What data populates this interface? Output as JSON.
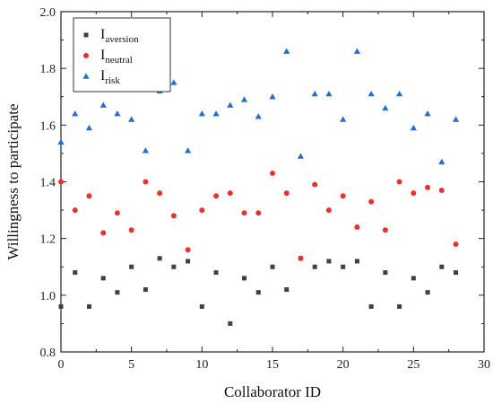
{
  "chart_data": {
    "type": "scatter",
    "xlabel": "Collaborator ID",
    "ylabel": "Willingness to participate",
    "xlim": [
      0,
      30
    ],
    "ylim": [
      0.8,
      2.0
    ],
    "xticks": [
      0,
      5,
      10,
      15,
      20,
      25,
      30
    ],
    "yticks": [
      0.8,
      1.0,
      1.2,
      1.4,
      1.6,
      1.8,
      2.0
    ],
    "xtick_labels": [
      "0",
      "5",
      "10",
      "15",
      "20",
      "25",
      "30"
    ],
    "ytick_labels": [
      "0.8",
      "1.0",
      "1.2",
      "1.4",
      "1.6",
      "1.8",
      "2.0"
    ],
    "grid": false,
    "legend_position": "top-left",
    "series": [
      {
        "name": "I_aversion",
        "label_main": "I",
        "label_sub": "aversion",
        "marker": "square",
        "color": "#404040",
        "x": [
          0,
          1,
          2,
          3,
          4,
          5,
          6,
          7,
          8,
          9,
          10,
          11,
          12,
          13,
          14,
          15,
          16,
          17,
          18,
          19,
          20,
          21,
          22,
          23,
          24,
          25,
          26,
          27,
          28
        ],
        "y": [
          0.96,
          1.08,
          0.96,
          1.06,
          1.01,
          1.1,
          1.02,
          1.13,
          1.1,
          1.12,
          0.96,
          1.08,
          0.9,
          1.06,
          1.01,
          1.1,
          1.02,
          1.13,
          1.1,
          1.12,
          1.1,
          1.12,
          0.96,
          1.08,
          0.96,
          1.06,
          1.01,
          1.1,
          1.08
        ]
      },
      {
        "name": "I_neutral",
        "label_main": "I",
        "label_sub": "neutral",
        "marker": "circle",
        "color": "#e8322e",
        "x": [
          0,
          1,
          2,
          3,
          4,
          5,
          6,
          7,
          8,
          9,
          10,
          11,
          12,
          13,
          14,
          15,
          16,
          17,
          18,
          19,
          20,
          21,
          22,
          23,
          24,
          25,
          26,
          27,
          28
        ],
        "y": [
          1.4,
          1.3,
          1.35,
          1.22,
          1.29,
          1.23,
          1.4,
          1.36,
          1.28,
          1.16,
          1.3,
          1.35,
          1.36,
          1.29,
          1.29,
          1.43,
          1.36,
          1.13,
          1.39,
          1.3,
          1.35,
          1.24,
          1.33,
          1.23,
          1.4,
          1.36,
          1.38,
          1.37,
          1.18
        ]
      },
      {
        "name": "I_risk",
        "label_main": "I",
        "label_sub": "risk",
        "marker": "triangle",
        "color": "#1f6fd1",
        "x": [
          0,
          1,
          2,
          3,
          4,
          5,
          6,
          7,
          8,
          9,
          10,
          11,
          12,
          13,
          14,
          15,
          16,
          17,
          18,
          19,
          20,
          21,
          22,
          23,
          24,
          25,
          26,
          27,
          28
        ],
        "y": [
          1.54,
          1.64,
          1.59,
          1.67,
          1.64,
          1.62,
          1.51,
          1.72,
          1.75,
          1.51,
          1.64,
          1.64,
          1.67,
          1.69,
          1.63,
          1.7,
          1.86,
          1.49,
          1.71,
          1.71,
          1.62,
          1.86,
          1.71,
          1.66,
          1.71,
          1.59,
          1.64,
          1.47,
          1.62
        ]
      }
    ]
  }
}
